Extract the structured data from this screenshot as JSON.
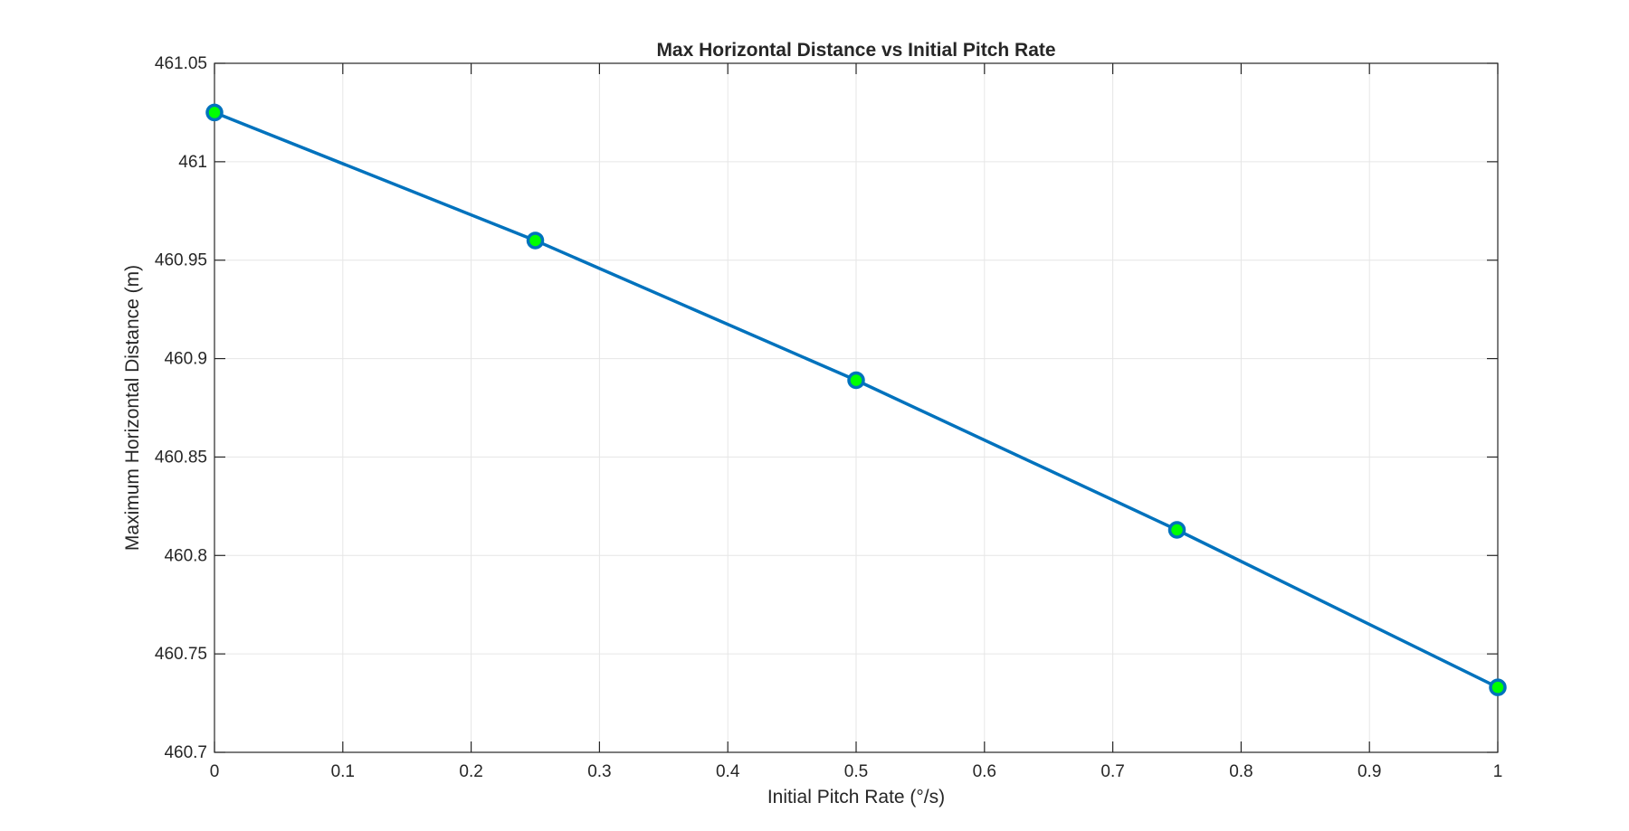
{
  "chart_data": {
    "type": "line",
    "title": "Max Horizontal Distance vs Initial Pitch Rate",
    "xlabel": "Initial Pitch Rate (°/s)",
    "ylabel": "Maximum Horizontal Distance (m)",
    "xlim": [
      0,
      1
    ],
    "ylim": [
      460.7,
      461.05
    ],
    "xticks": [
      0,
      0.1,
      0.2,
      0.3,
      0.4,
      0.5,
      0.6,
      0.7,
      0.8,
      0.9,
      1
    ],
    "xtick_labels": [
      "0",
      "0.1",
      "0.2",
      "0.3",
      "0.4",
      "0.5",
      "0.6",
      "0.7",
      "0.8",
      "0.9",
      "1"
    ],
    "yticks": [
      460.7,
      460.75,
      460.8,
      460.85,
      460.9,
      460.95,
      461,
      461.05
    ],
    "ytick_labels": [
      "460.7",
      "460.75",
      "460.8",
      "460.85",
      "460.9",
      "460.95",
      "461",
      "461.05"
    ],
    "grid": true,
    "series": [
      {
        "x": [
          0,
          0.25,
          0.5,
          0.75,
          1
        ],
        "y": [
          461.025,
          460.96,
          460.889,
          460.813,
          460.733
        ],
        "line_color": "#0072BD",
        "marker": "circle",
        "marker_face_color": "#00FF00",
        "marker_edge_color": "#0072BD"
      }
    ]
  }
}
